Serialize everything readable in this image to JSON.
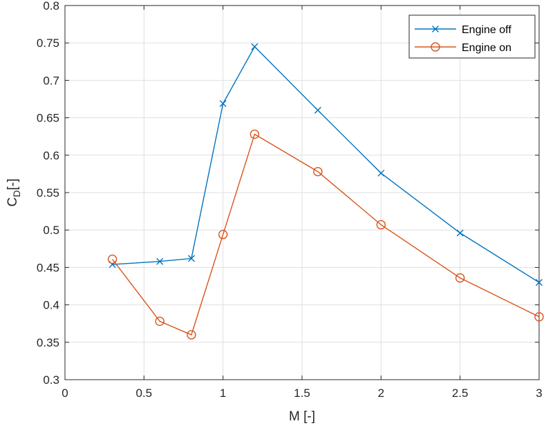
{
  "chart_data": {
    "type": "line",
    "xlabel": "M [-]",
    "ylabel": {
      "main": "C",
      "sub": "D",
      "suffix": "[-]"
    },
    "xlim": [
      0,
      3
    ],
    "ylim": [
      0.3,
      0.8
    ],
    "xticks": [
      "0",
      "0.5",
      "1",
      "1.5",
      "2",
      "2.5",
      "3"
    ],
    "yticks": [
      "0.3",
      "0.35",
      "0.4",
      "0.45",
      "0.5",
      "0.55",
      "0.6",
      "0.65",
      "0.7",
      "0.75",
      "0.8"
    ],
    "grid": true,
    "legend_position": "top-right",
    "series": [
      {
        "name": "Engine off",
        "marker": "x",
        "color": "#0072BD",
        "x": [
          0.3,
          0.6,
          0.8,
          1.0,
          1.2,
          1.6,
          2.0,
          2.5,
          3.0
        ],
        "y": [
          0.454,
          0.458,
          0.462,
          0.669,
          0.745,
          0.66,
          0.576,
          0.496,
          0.43
        ]
      },
      {
        "name": "Engine on",
        "marker": "o",
        "color": "#D95319",
        "x": [
          0.3,
          0.6,
          0.8,
          1.0,
          1.2,
          1.6,
          2.0,
          2.5,
          3.0
        ],
        "y": [
          0.461,
          0.378,
          0.36,
          0.494,
          0.628,
          0.578,
          0.507,
          0.436,
          0.384
        ]
      }
    ]
  }
}
